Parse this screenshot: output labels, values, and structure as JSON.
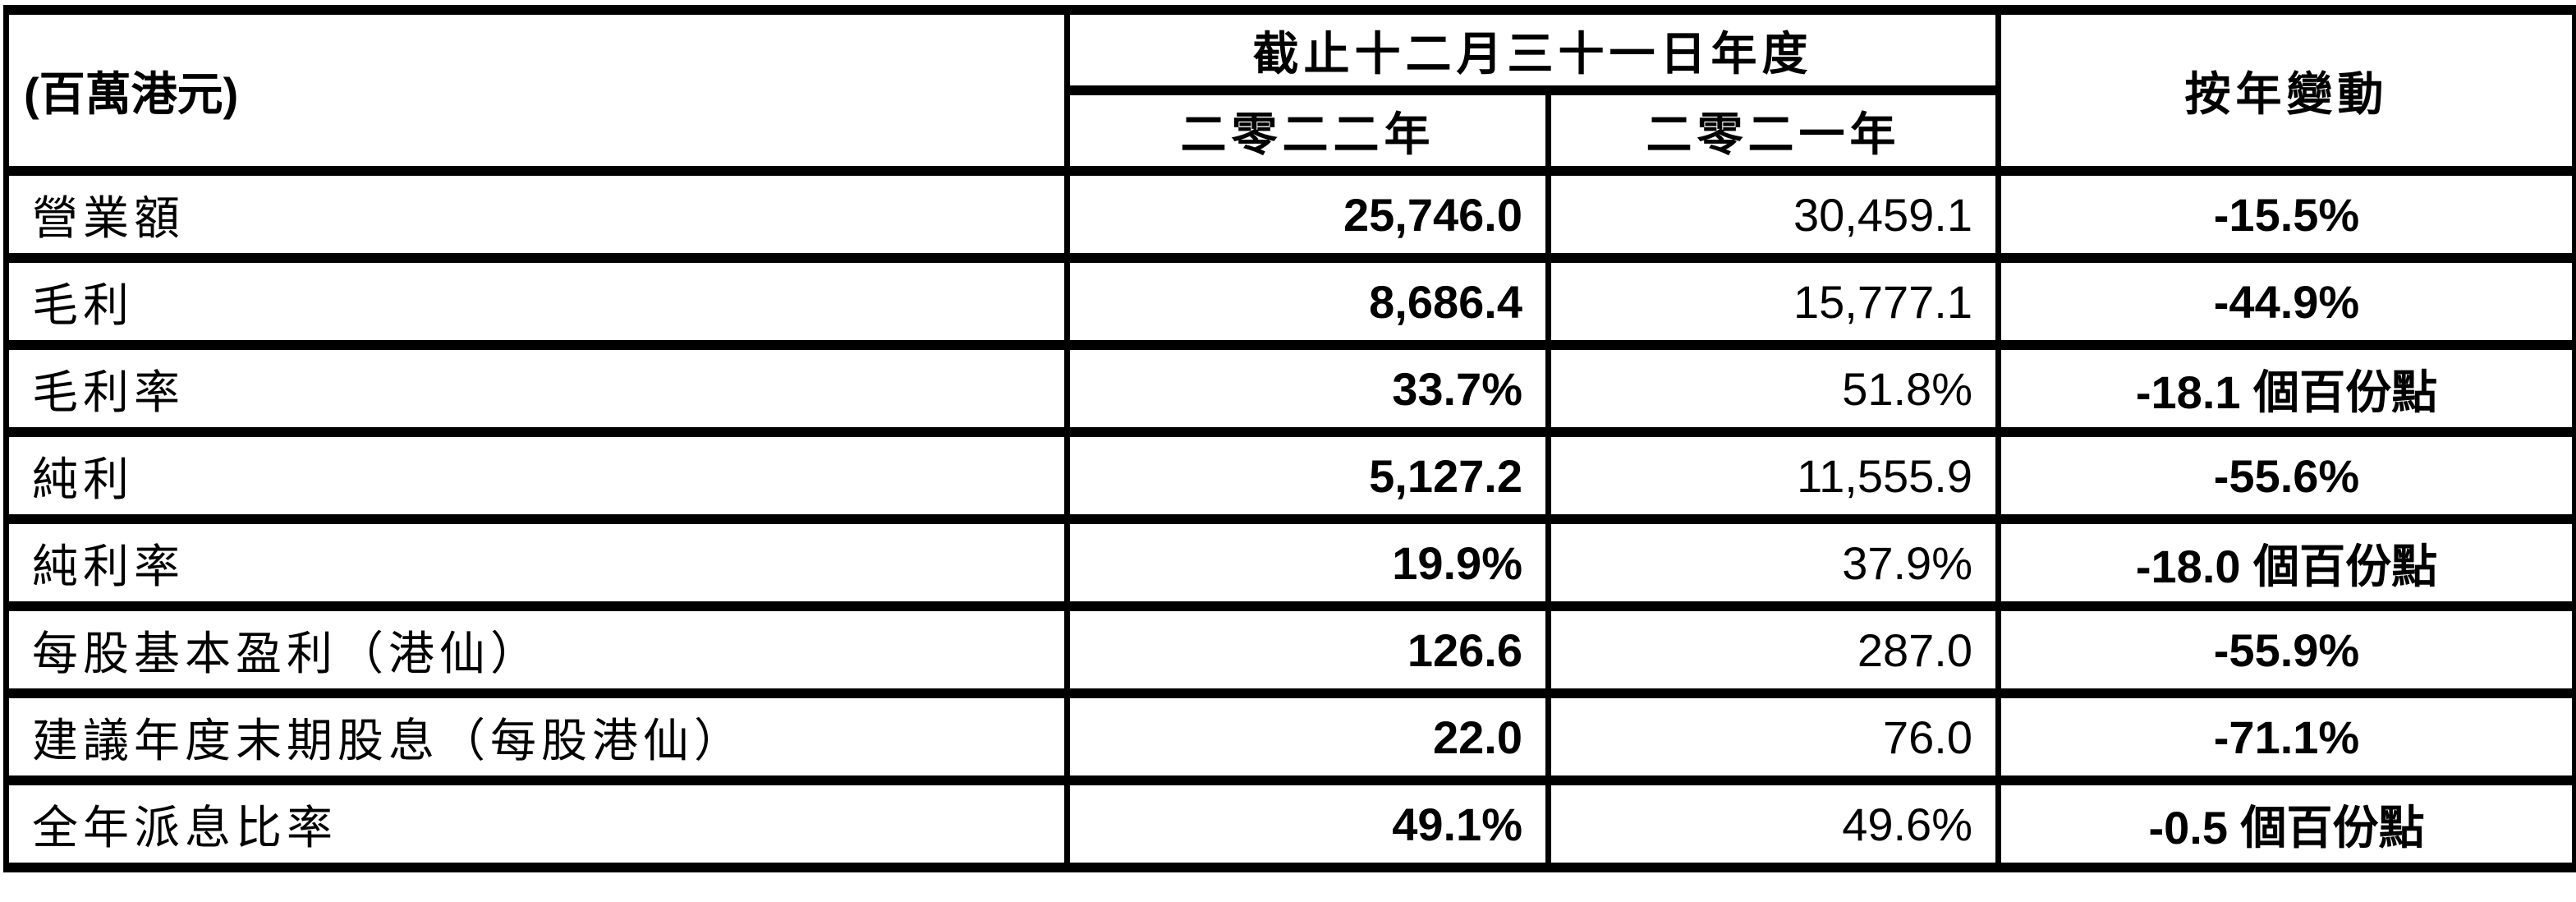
{
  "header": {
    "unit_label": "(百萬港元)",
    "period_label": "截止十二月三十一日年度",
    "year_2022": "二零二二年",
    "year_2021": "二零二一年",
    "change_label": "按年變動"
  },
  "rows": [
    {
      "label": "營業額",
      "y2022": "25,746.0",
      "y2021": "30,459.1",
      "change": "-15.5%"
    },
    {
      "label": "毛利",
      "y2022": "8,686.4",
      "y2021": "15,777.1",
      "change": "-44.9%"
    },
    {
      "label": "毛利率",
      "y2022": "33.7%",
      "y2021": "51.8%",
      "change": "-18.1 個百份點"
    },
    {
      "label": "純利",
      "y2022": "5,127.2",
      "y2021": "11,555.9",
      "change": "-55.6%"
    },
    {
      "label": "純利率",
      "y2022": "19.9%",
      "y2021": "37.9%",
      "change": "-18.0 個百份點"
    },
    {
      "label": "每股基本盈利（港仙）",
      "y2022": "126.6",
      "y2021": "287.0",
      "change": "-55.9%"
    },
    {
      "label": "建議年度末期股息（每股港仙）",
      "y2022": "22.0",
      "y2021": "76.0",
      "change": "-71.1%"
    },
    {
      "label": "全年派息比率",
      "y2022": "49.1%",
      "y2021": "49.6%",
      "change": "-0.5 個百份點"
    }
  ]
}
